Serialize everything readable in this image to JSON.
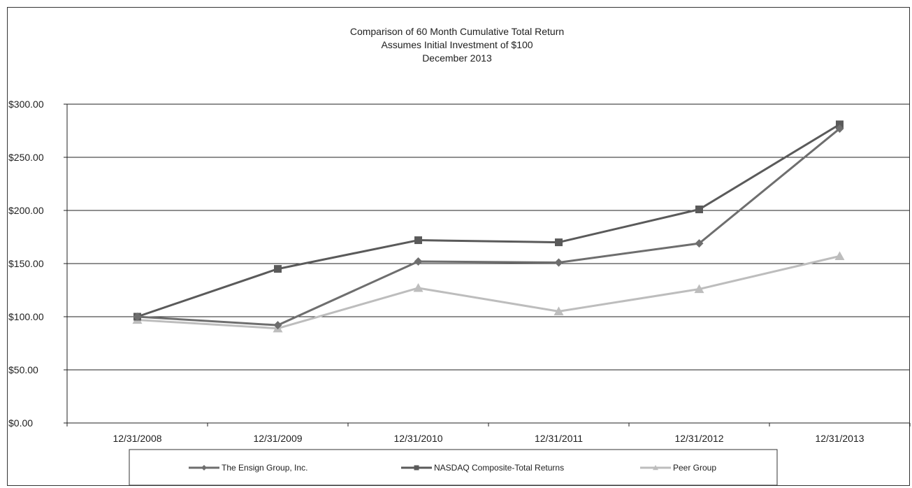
{
  "chart_data": {
    "type": "line",
    "title": [
      "Comparison of 60 Month Cumulative Total Return",
      "Assumes Initial Investment of $100",
      "December 2013"
    ],
    "categories": [
      "12/31/2008",
      "12/31/2009",
      "12/31/2010",
      "12/31/2011",
      "12/31/2012",
      "12/31/2013"
    ],
    "y_ticks": [
      "$0.00",
      "$50.00",
      "$100.00",
      "$150.00",
      "$200.00",
      "$250.00",
      "$300.00"
    ],
    "ylim": [
      0,
      300
    ],
    "grid": "horizontal",
    "legend_position": "bottom",
    "series": [
      {
        "name": "The Ensign Group, Inc.",
        "marker": "diamond",
        "color": "#6e6e6e",
        "values": [
          100,
          92,
          152,
          151,
          169,
          277
        ]
      },
      {
        "name": "NASDAQ Composite-Total Returns",
        "marker": "square",
        "color": "#5a5a5a",
        "values": [
          100,
          145,
          172,
          170,
          201,
          281
        ]
      },
      {
        "name": "Peer Group",
        "marker": "triangle",
        "color": "#bdbdbd",
        "values": [
          97,
          89,
          127,
          105,
          126,
          157
        ]
      }
    ]
  }
}
